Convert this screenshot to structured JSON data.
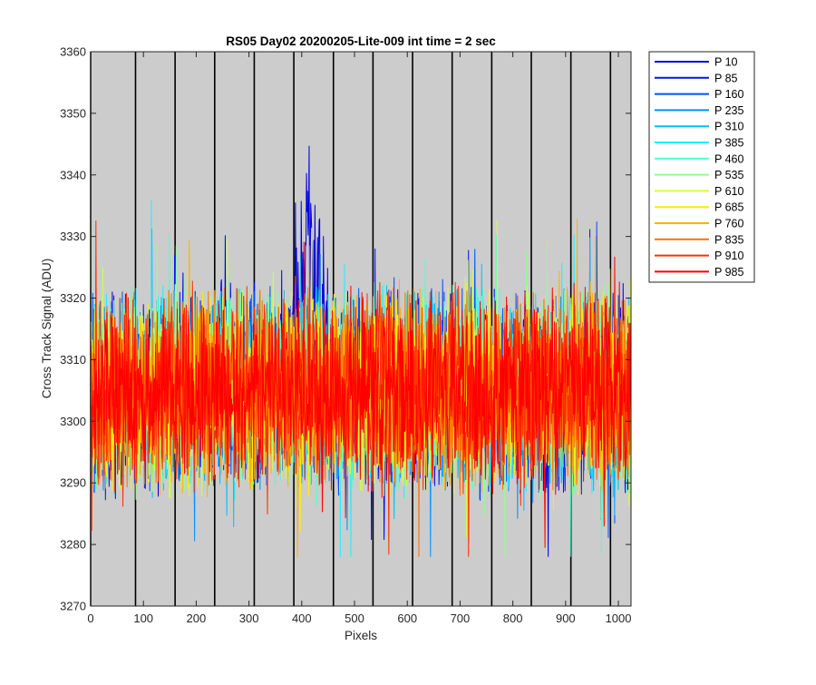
{
  "chart_data": {
    "type": "line",
    "title": "RS05 Day02 20200205-Lite-009 int time = 2 sec",
    "xlabel": "Pixels",
    "ylabel": "Cross Track Signal (ADU)",
    "xlim": [
      0,
      1024
    ],
    "ylim": [
      3270,
      3360
    ],
    "xticks": [
      0,
      100,
      200,
      300,
      400,
      500,
      600,
      700,
      800,
      900,
      1000
    ],
    "yticks": [
      3270,
      3280,
      3290,
      3300,
      3310,
      3320,
      3330,
      3340,
      3350,
      3360
    ],
    "grid": false,
    "background_color": "#cccccc",
    "vertical_marker_lines_x": [
      0,
      85,
      160,
      235,
      310,
      385,
      460,
      535,
      610,
      685,
      760,
      835,
      910,
      985
    ],
    "legend_position": "outside-top-right",
    "noise_band": {
      "center": 3305,
      "typical_low": 3288,
      "typical_high": 3324,
      "min": 3278,
      "max": 3336
    },
    "feature": {
      "series": "P 10",
      "x_range": [
        375,
        450
      ],
      "peak_value": 3354
    },
    "series": [
      {
        "name": "P 10",
        "color": "#0000e0"
      },
      {
        "name": "P 85",
        "color": "#0016f2"
      },
      {
        "name": "P 160",
        "color": "#0050ff"
      },
      {
        "name": "P 235",
        "color": "#0090ff"
      },
      {
        "name": "P 310",
        "color": "#00c0ff"
      },
      {
        "name": "P 385",
        "color": "#20f0ff"
      },
      {
        "name": "P 460",
        "color": "#50ffd0"
      },
      {
        "name": "P 535",
        "color": "#90ff90"
      },
      {
        "name": "P 610",
        "color": "#d0ff40"
      },
      {
        "name": "P 685",
        "color": "#ffee00"
      },
      {
        "name": "P 760",
        "color": "#ffb000"
      },
      {
        "name": "P 835",
        "color": "#ff7000"
      },
      {
        "name": "P 910",
        "color": "#ff3000"
      },
      {
        "name": "P 985",
        "color": "#ff0000"
      }
    ]
  }
}
